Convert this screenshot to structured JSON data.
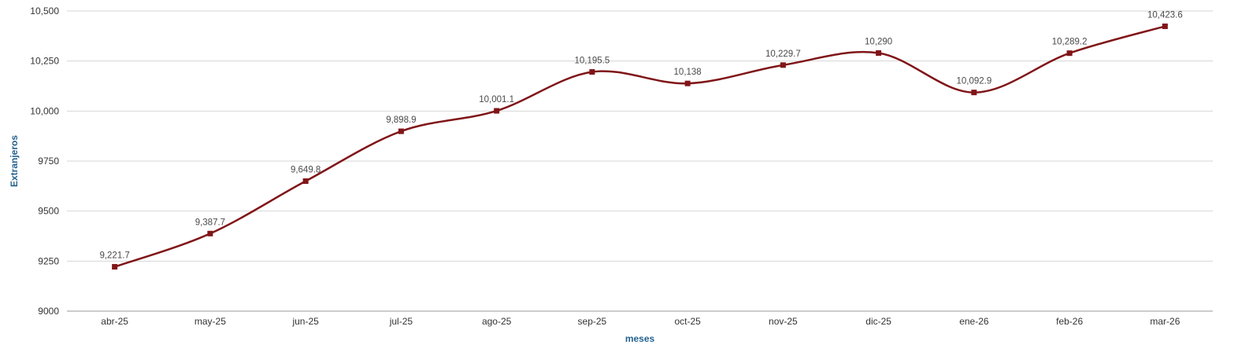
{
  "chart": {
    "ylabel": "Extranjeros",
    "xlabel": "meses"
  },
  "chart_data": {
    "type": "line",
    "title": "",
    "categories": [
      "abr-25",
      "may-25",
      "jun-25",
      "jul-25",
      "ago-25",
      "sep-25",
      "oct-25",
      "nov-25",
      "dic-25",
      "ene-26",
      "feb-26",
      "mar-26"
    ],
    "values": [
      9221.7,
      9387.7,
      9649.8,
      9898.9,
      10001.1,
      10195.5,
      10138,
      10229.7,
      10290,
      10092.9,
      10289.2,
      10423.6
    ],
    "point_labels": [
      "9,221.7",
      "9,387.7",
      "9,649.8",
      "9,898.9",
      "10,001.1",
      "10,195.5",
      "10,138",
      "10,229.7",
      "10,290",
      "10,092.9",
      "10,289.2",
      "10,423.6"
    ],
    "xlabel": "meses",
    "ylabel": "Extranjeros",
    "ylim": [
      9000,
      10500
    ],
    "yticks": [
      9000,
      9250,
      9500,
      9750,
      10000,
      10250,
      10500
    ],
    "ytick_labels": [
      "9000",
      "9250",
      "9500",
      "9750",
      "10,000",
      "10,250",
      "10,500"
    ],
    "grid": "horizontal",
    "legend": "none",
    "line_color": "#801518",
    "marker": "square",
    "grid_color": "#d6d6d6",
    "axis_line_color": "#9a9a9a",
    "tick_label_color": "#333333",
    "point_label_color": "#4a4a4a",
    "axis_title_color": "#25628f"
  }
}
